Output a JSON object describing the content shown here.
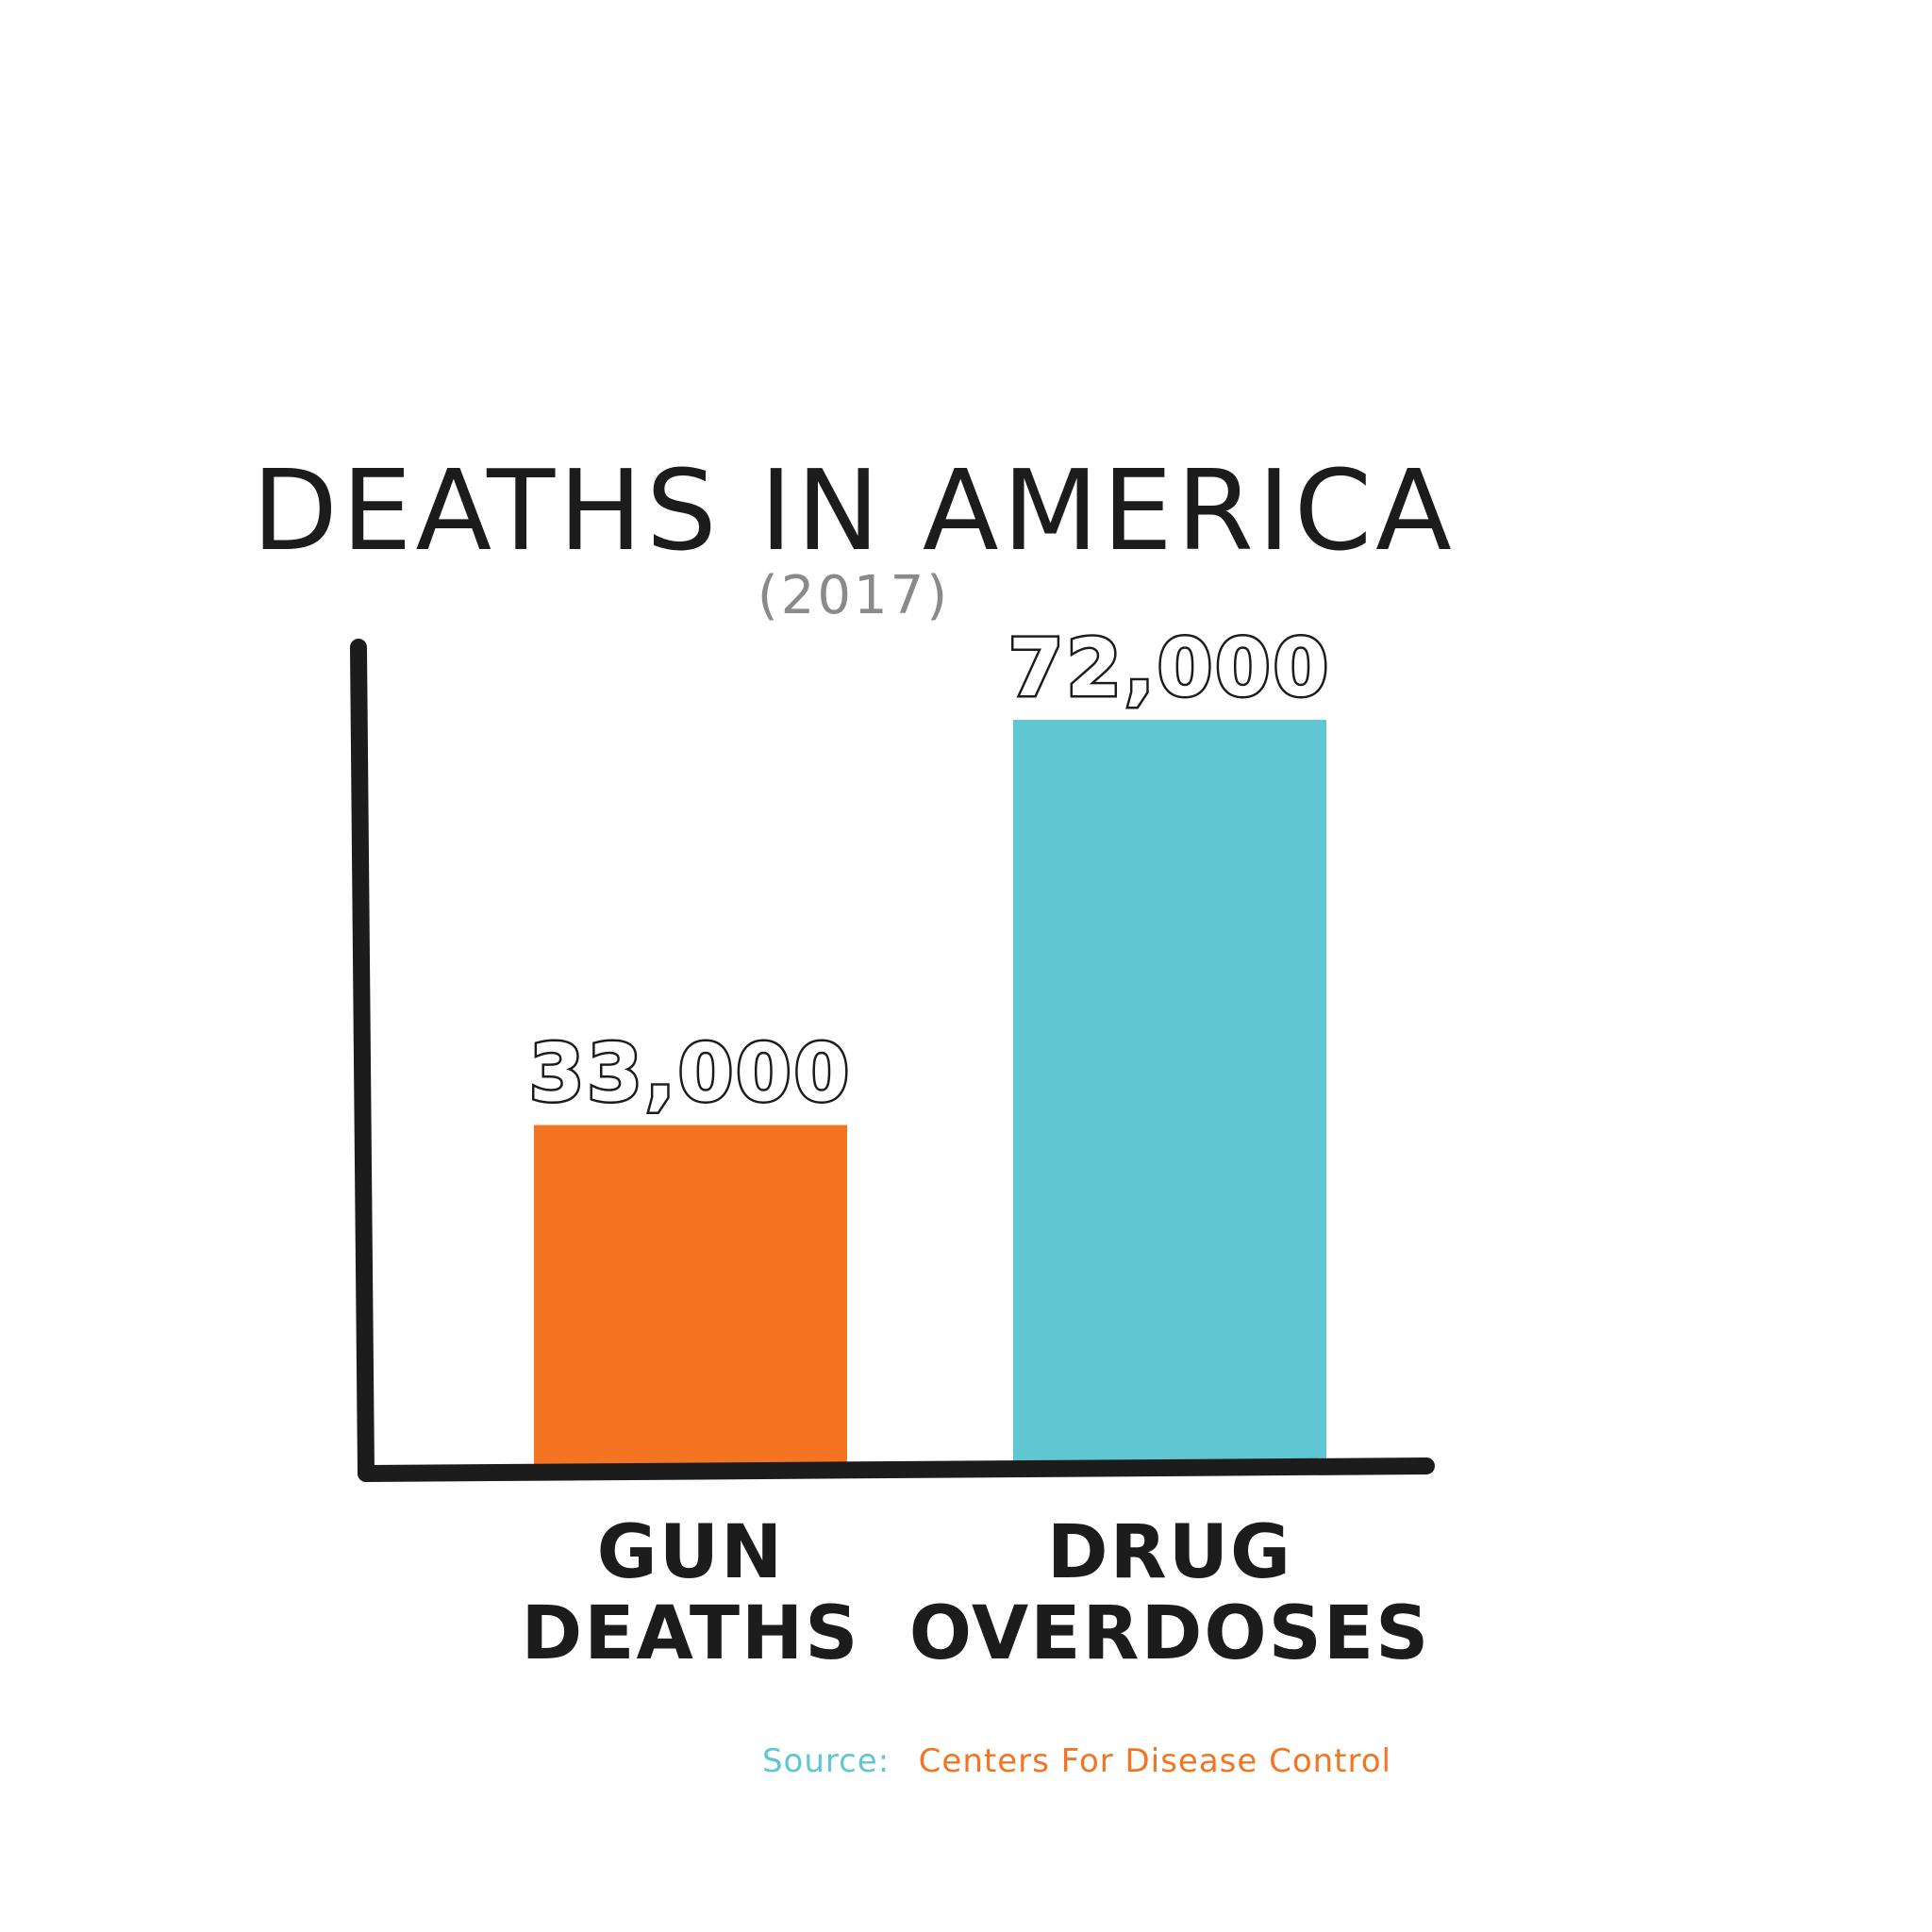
{
  "chart_data": {
    "type": "bar",
    "title": "DEATHS IN AMERICA",
    "subtitle": "(2017)",
    "categories": [
      [
        "GUN",
        "DEATHS"
      ],
      [
        "DRUG",
        "OVERDOSES"
      ]
    ],
    "values": [
      33000,
      72000
    ],
    "value_labels": [
      "33,000",
      "72,000"
    ],
    "ylim": [
      0,
      79000
    ],
    "grid": false,
    "xlabel": "",
    "ylabel": ""
  },
  "source": {
    "prefix": "Source:",
    "name": "Centers For Disease Control"
  },
  "colors": {
    "bars": [
      "#f57422",
      "#5ec7d2"
    ],
    "axis": "#1c1c1c",
    "source_prefix": "#5ec7d2",
    "source_name": "#f57422"
  }
}
